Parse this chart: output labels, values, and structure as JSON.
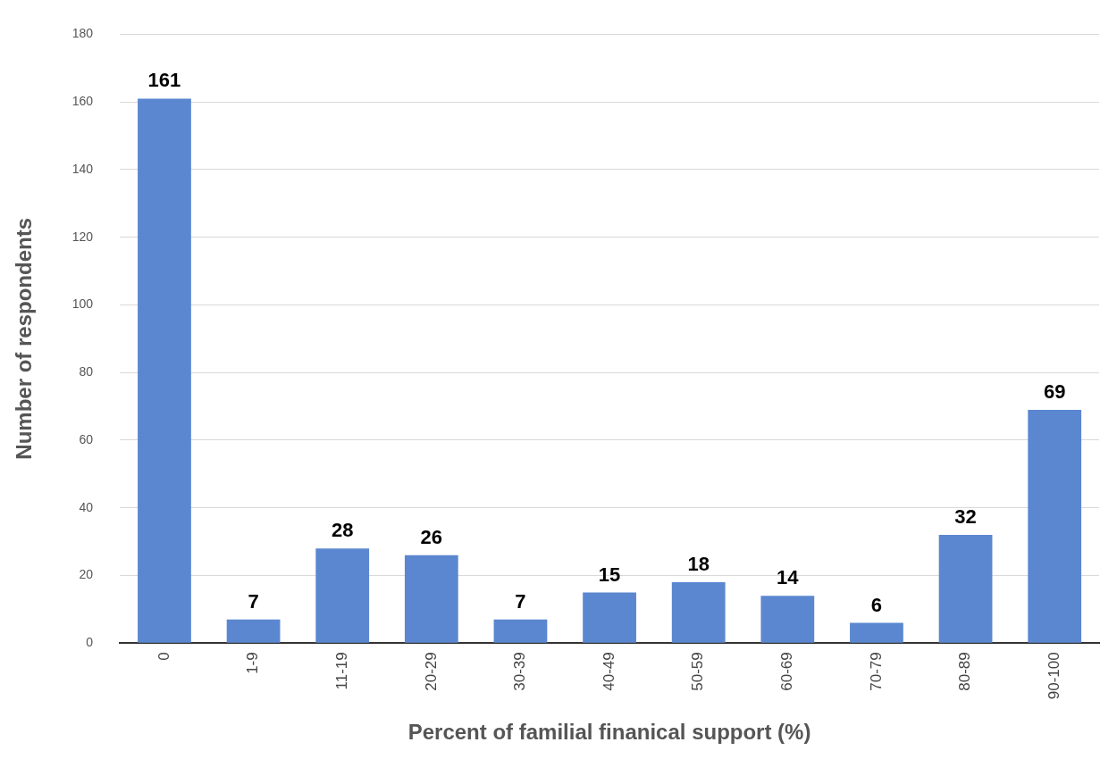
{
  "chart_data": {
    "type": "bar",
    "xlabel": "Percent of familial finanical support (%)",
    "ylabel": "Number of respondents",
    "categories": [
      "0",
      "1-9",
      "11-19",
      "20-29",
      "30-39",
      "40-49",
      "50-59",
      "60-69",
      "70-79",
      "80-89",
      "90-100"
    ],
    "values": [
      161,
      7,
      28,
      26,
      7,
      15,
      18,
      14,
      6,
      32,
      69
    ],
    "color": "#5b87d0",
    "ylim": [
      0,
      180
    ],
    "yticks": [
      0,
      20,
      40,
      60,
      80,
      100,
      120,
      140,
      160,
      180
    ],
    "grid": "y",
    "data_labels": true
  }
}
